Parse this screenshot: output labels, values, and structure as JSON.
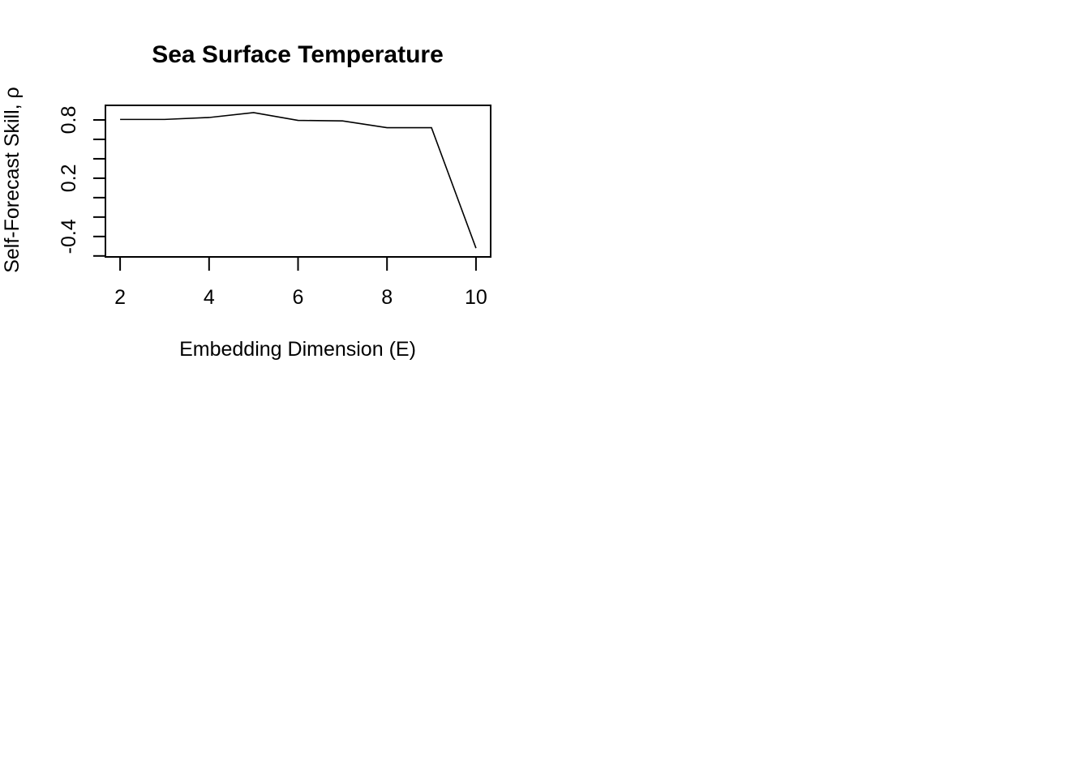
{
  "chart_data": {
    "type": "line",
    "title": "Sea Surface Temperature",
    "xlabel": "Embedding Dimension (E)",
    "ylabel": "Self-Forecast Skill, ρ",
    "x": [
      2,
      3,
      4,
      5,
      6,
      7,
      8,
      9,
      10
    ],
    "series": [
      {
        "values": [
          0.805,
          0.805,
          0.825,
          0.875,
          0.795,
          0.79,
          0.72,
          0.72,
          -0.52
        ]
      }
    ],
    "xlim": [
      1.67,
      10.33
    ],
    "ylim": [
      -0.61,
      0.95
    ],
    "x_ticks": [
      2,
      4,
      6,
      8,
      10
    ],
    "x_tick_labels": [
      "2",
      "4",
      "6",
      "8",
      "10"
    ],
    "y_ticks": [
      -0.6,
      -0.4,
      -0.2,
      0.0,
      0.2,
      0.4,
      0.6,
      0.8
    ],
    "y_tick_labels": [
      "-0.4",
      "0.2",
      "0.8"
    ],
    "y_labeled_ticks": [
      -0.4,
      0.2,
      0.8
    ],
    "grid": false,
    "legend": "none",
    "colors": {
      "line": "#000000",
      "frame": "#000000",
      "background": "#ffffff"
    }
  }
}
